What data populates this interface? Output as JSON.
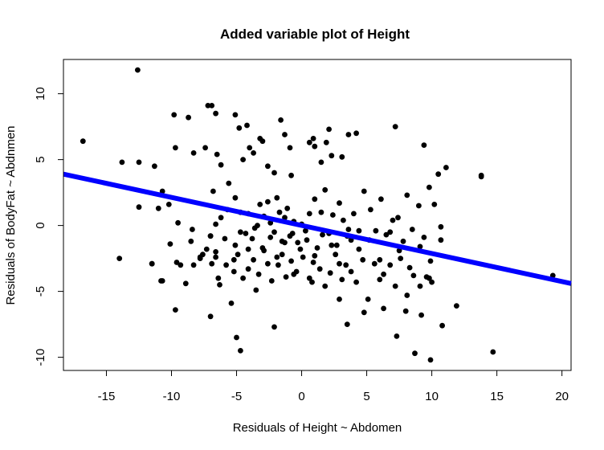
{
  "chart_data": {
    "type": "scatter",
    "title": "Added variable plot of Height",
    "xlabel": "Residuals of Height ~ Abdomen",
    "ylabel": "Residuals of BodyFat ~ Abdnmen",
    "xlim": [
      -18.3,
      20.7
    ],
    "ylim": [
      -11.0,
      12.6
    ],
    "xticks": [
      -15,
      -10,
      -5,
      0,
      5,
      10,
      15,
      20
    ],
    "yticks": [
      -10,
      -5,
      0,
      5,
      10
    ],
    "grid": false,
    "legend": "none",
    "point_color": "#000000",
    "line_color": "#0000ff",
    "fit_line": {
      "x": [
        -18.3,
        20.7
      ],
      "y": [
        3.9,
        -4.4
      ]
    },
    "x": [
      -16.8,
      -12.6,
      -13.8,
      -12.5,
      -11.3,
      -10.7,
      -9.8,
      -9.7,
      -8.7,
      -8.3,
      -7.2,
      -6.9,
      -6.6,
      -6.5,
      -6.2,
      -7.4,
      -5.6,
      -5.1,
      -4.8,
      -4.2,
      -4.0,
      -4.5,
      -3.7,
      -3.2,
      -3.0,
      -2.6,
      -2.1,
      -1.6,
      -1.3,
      -0.9,
      -0.8,
      0.6,
      0.9,
      1.0,
      1.5,
      1.9,
      2.1,
      2.3,
      3.1,
      3.6,
      4.2,
      7.2,
      9.4,
      10.5,
      11.1,
      13.8,
      13.8,
      -12.5,
      -11.0,
      -14.0,
      -11.5,
      -10.8,
      -10.2,
      -9.5,
      -8.5,
      -7.8,
      -7.0,
      -6.8,
      -6.6,
      -6.2,
      -5.7,
      -5.1,
      -4.7,
      -4.3,
      -4.1,
      -3.8,
      -3.4,
      -3.2,
      -2.9,
      -2.6,
      -2.4,
      -2.1,
      -1.9,
      -1.7,
      -1.5,
      -1.3,
      -1.1,
      -0.9,
      -0.6,
      -0.3,
      0.0,
      0.3,
      0.6,
      1.0,
      1.2,
      1.5,
      1.8,
      2.1,
      2.4,
      2.7,
      2.9,
      3.2,
      3.5,
      3.8,
      4.0,
      4.4,
      4.8,
      5.3,
      5.7,
      6.1,
      6.5,
      7.0,
      7.4,
      7.8,
      8.1,
      8.5,
      9.0,
      9.4,
      9.8,
      10.2,
      10.7,
      -11.5,
      -10.7,
      -9.7,
      -8.9,
      -8.3,
      -7.8,
      -7.3,
      -6.9,
      -6.6,
      -6.3,
      -5.8,
      -5.2,
      -4.9,
      -4.5,
      -4.1,
      -3.7,
      -3.3,
      -2.9,
      -2.6,
      -2.3,
      -1.8,
      -1.5,
      -1.2,
      -0.8,
      -0.4,
      0.1,
      0.6,
      0.9,
      1.4,
      1.8,
      2.2,
      2.6,
      3.1,
      3.4,
      3.8,
      4.2,
      4.7,
      5.1,
      5.6,
      6.0,
      6.3,
      6.8,
      7.2,
      7.6,
      8.1,
      8.6,
      9.1,
      9.6,
      10.0,
      -10.1,
      -9.3,
      -8.4,
      -7.6,
      -7.0,
      -6.6,
      -5.9,
      -5.2,
      -4.7,
      -4.1,
      -3.6,
      -3.0,
      -2.4,
      -1.9,
      -1.3,
      -0.7,
      -0.1,
      0.4,
      1.0,
      1.6,
      2.3,
      2.9,
      3.6,
      4.4,
      5.2,
      6.0,
      6.8,
      7.5,
      8.3,
      9.1,
      9.9,
      10.7,
      -9.6,
      -7.0,
      -5.4,
      -5.0,
      -4.7,
      -3.5,
      -2.1,
      -0.6,
      0.8,
      2.9,
      3.5,
      4.8,
      6.3,
      7.3,
      8.0,
      8.7,
      9.2,
      9.9,
      10.8,
      11.9,
      14.7,
      19.3,
      -6.4,
      -5.1,
      9.8
    ],
    "y": [
      6.4,
      11.8,
      4.8,
      4.8,
      4.5,
      2.6,
      8.4,
      5.9,
      8.2,
      5.5,
      9.1,
      9.1,
      8.5,
      5.4,
      4.6,
      5.9,
      3.2,
      8.4,
      7.4,
      7.6,
      5.9,
      5.0,
      5.5,
      6.6,
      6.4,
      4.5,
      4.0,
      8.0,
      6.9,
      5.9,
      3.8,
      6.3,
      6.6,
      6.0,
      4.8,
      6.3,
      7.3,
      5.3,
      5.2,
      6.9,
      7.0,
      7.5,
      6.1,
      3.9,
      4.4,
      3.8,
      3.7,
      1.4,
      1.3,
      -2.5,
      -2.9,
      -4.2,
      1.6,
      0.2,
      -1.2,
      -2.5,
      -0.8,
      2.6,
      0.1,
      0.6,
      1.2,
      2.1,
      1.0,
      -0.6,
      0.9,
      -1.0,
      0.0,
      1.6,
      0.7,
      1.8,
      0.2,
      -0.5,
      2.1,
      1.0,
      -1.2,
      0.6,
      1.3,
      -0.8,
      0.3,
      -1.3,
      0.1,
      -0.4,
      0.9,
      2.0,
      -1.7,
      1.0,
      2.7,
      -0.6,
      0.8,
      -1.5,
      1.7,
      0.4,
      -0.8,
      -1.1,
      0.9,
      -0.4,
      2.6,
      1.2,
      -0.4,
      2.0,
      -0.7,
      0.4,
      0.6,
      -1.2,
      2.3,
      -0.3,
      1.5,
      -0.9,
      2.9,
      1.6,
      -0.1,
      -2.9,
      -4.2,
      -6.4,
      -4.4,
      -3.0,
      -2.4,
      -1.8,
      -2.9,
      -2.4,
      -4.5,
      -3.0,
      -3.5,
      -2.2,
      -4.0,
      -3.3,
      -2.6,
      -3.7,
      -1.9,
      -2.9,
      -4.2,
      -3.0,
      -2.2,
      -3.9,
      -2.7,
      -3.5,
      -2.4,
      -4.0,
      -2.8,
      -3.3,
      -4.6,
      -3.6,
      -2.2,
      -4.1,
      -3.0,
      -3.5,
      -4.3,
      -2.6,
      -5.6,
      -2.9,
      -4.1,
      -3.7,
      -3.0,
      -4.6,
      -2.5,
      -5.3,
      -3.8,
      -4.6,
      -3.9,
      -4.3,
      -1.4,
      -3.0,
      -0.3,
      -2.2,
      -0.8,
      -2.0,
      -1.0,
      -2.6,
      -0.5,
      -1.8,
      -0.2,
      -1.7,
      -0.9,
      -2.4,
      -1.3,
      -0.6,
      -1.8,
      -1.1,
      -2.3,
      -0.7,
      -1.5,
      -2.9,
      -0.3,
      -1.8,
      -1.1,
      -2.6,
      -0.5,
      -1.9,
      -3.2,
      -1.6,
      -2.7,
      -1.1,
      -2.8,
      -6.9,
      -5.9,
      -8.5,
      -9.5,
      -4.9,
      -7.7,
      -3.7,
      -4.3,
      -5.6,
      -7.5,
      -6.6,
      -6.3,
      -8.4,
      -6.5,
      -9.7,
      -6.8,
      -10.2,
      -7.6,
      -6.1,
      -9.6,
      -3.8,
      -4.0,
      -1.5,
      -4.0
    ]
  }
}
